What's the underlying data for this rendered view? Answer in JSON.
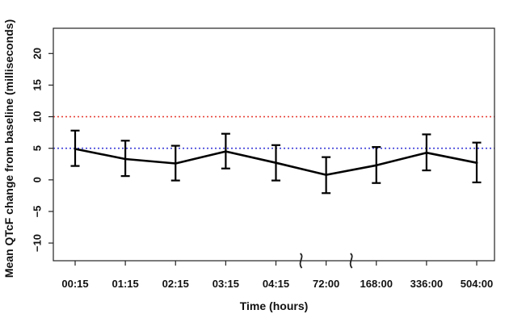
{
  "chart_data": {
    "type": "line",
    "title": "",
    "xlabel": "Time (hours)",
    "ylabel": "Mean QTcF change from baseline (milliseconds)",
    "categories": [
      "00:15",
      "01:15",
      "02:15",
      "03:15",
      "04:15",
      "72:00",
      "168:00",
      "336:00",
      "504:00"
    ],
    "series": [
      {
        "values": [
          4.9,
          3.3,
          2.6,
          4.5,
          2.7,
          0.8,
          2.3,
          4.3,
          2.7
        ],
        "error_upper": [
          7.8,
          6.2,
          5.4,
          7.3,
          5.5,
          3.6,
          5.2,
          7.2,
          5.9
        ],
        "error_lower": [
          2.2,
          0.6,
          -0.1,
          1.8,
          -0.1,
          -2.1,
          -0.5,
          1.5,
          -0.4
        ],
        "color": "#000000"
      }
    ],
    "reference_lines": [
      {
        "y": 10,
        "color": "#e8443a",
        "style": "dotted"
      },
      {
        "y": 5,
        "color": "#3b3bd9",
        "style": "dotted"
      }
    ],
    "axis_breaks_after": [
      "04:15",
      "72:00"
    ],
    "yticks": [
      -10,
      -5,
      0,
      5,
      10,
      15,
      20
    ],
    "ytick_labels": [
      "−10",
      "−5",
      "0",
      "5",
      "10",
      "15",
      "20"
    ],
    "ylim": [
      -12.8,
      24
    ],
    "grid": false,
    "legend": "none"
  }
}
